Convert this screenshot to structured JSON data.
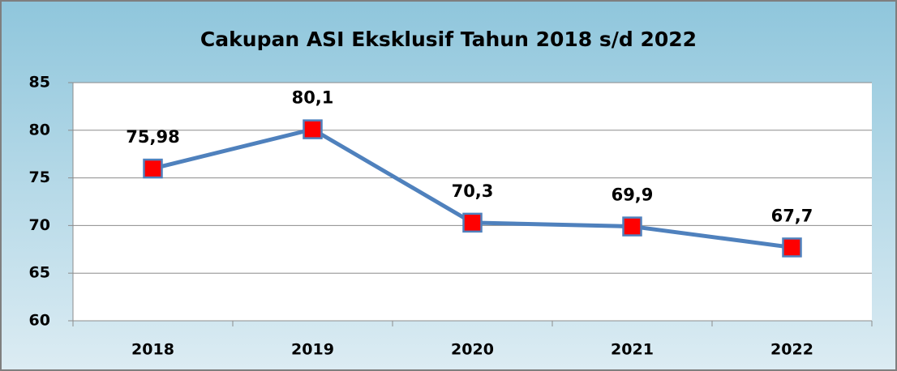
{
  "chart_data": {
    "type": "line",
    "title": "Cakupan ASI Eksklusif Tahun 2018 s/d 2022",
    "categories": [
      "2018",
      "2019",
      "2020",
      "2021",
      "2022"
    ],
    "values": [
      75.98,
      80.1,
      70.3,
      69.9,
      67.7
    ],
    "value_labels": [
      "75,98",
      "80,1",
      "70,3",
      "69,9",
      "67,7"
    ],
    "color": "#4f81bd",
    "marker_color": "#ff0000",
    "ylim": [
      60,
      85
    ],
    "yticks": [
      60,
      65,
      70,
      75,
      80,
      85
    ],
    "grid": true
  }
}
